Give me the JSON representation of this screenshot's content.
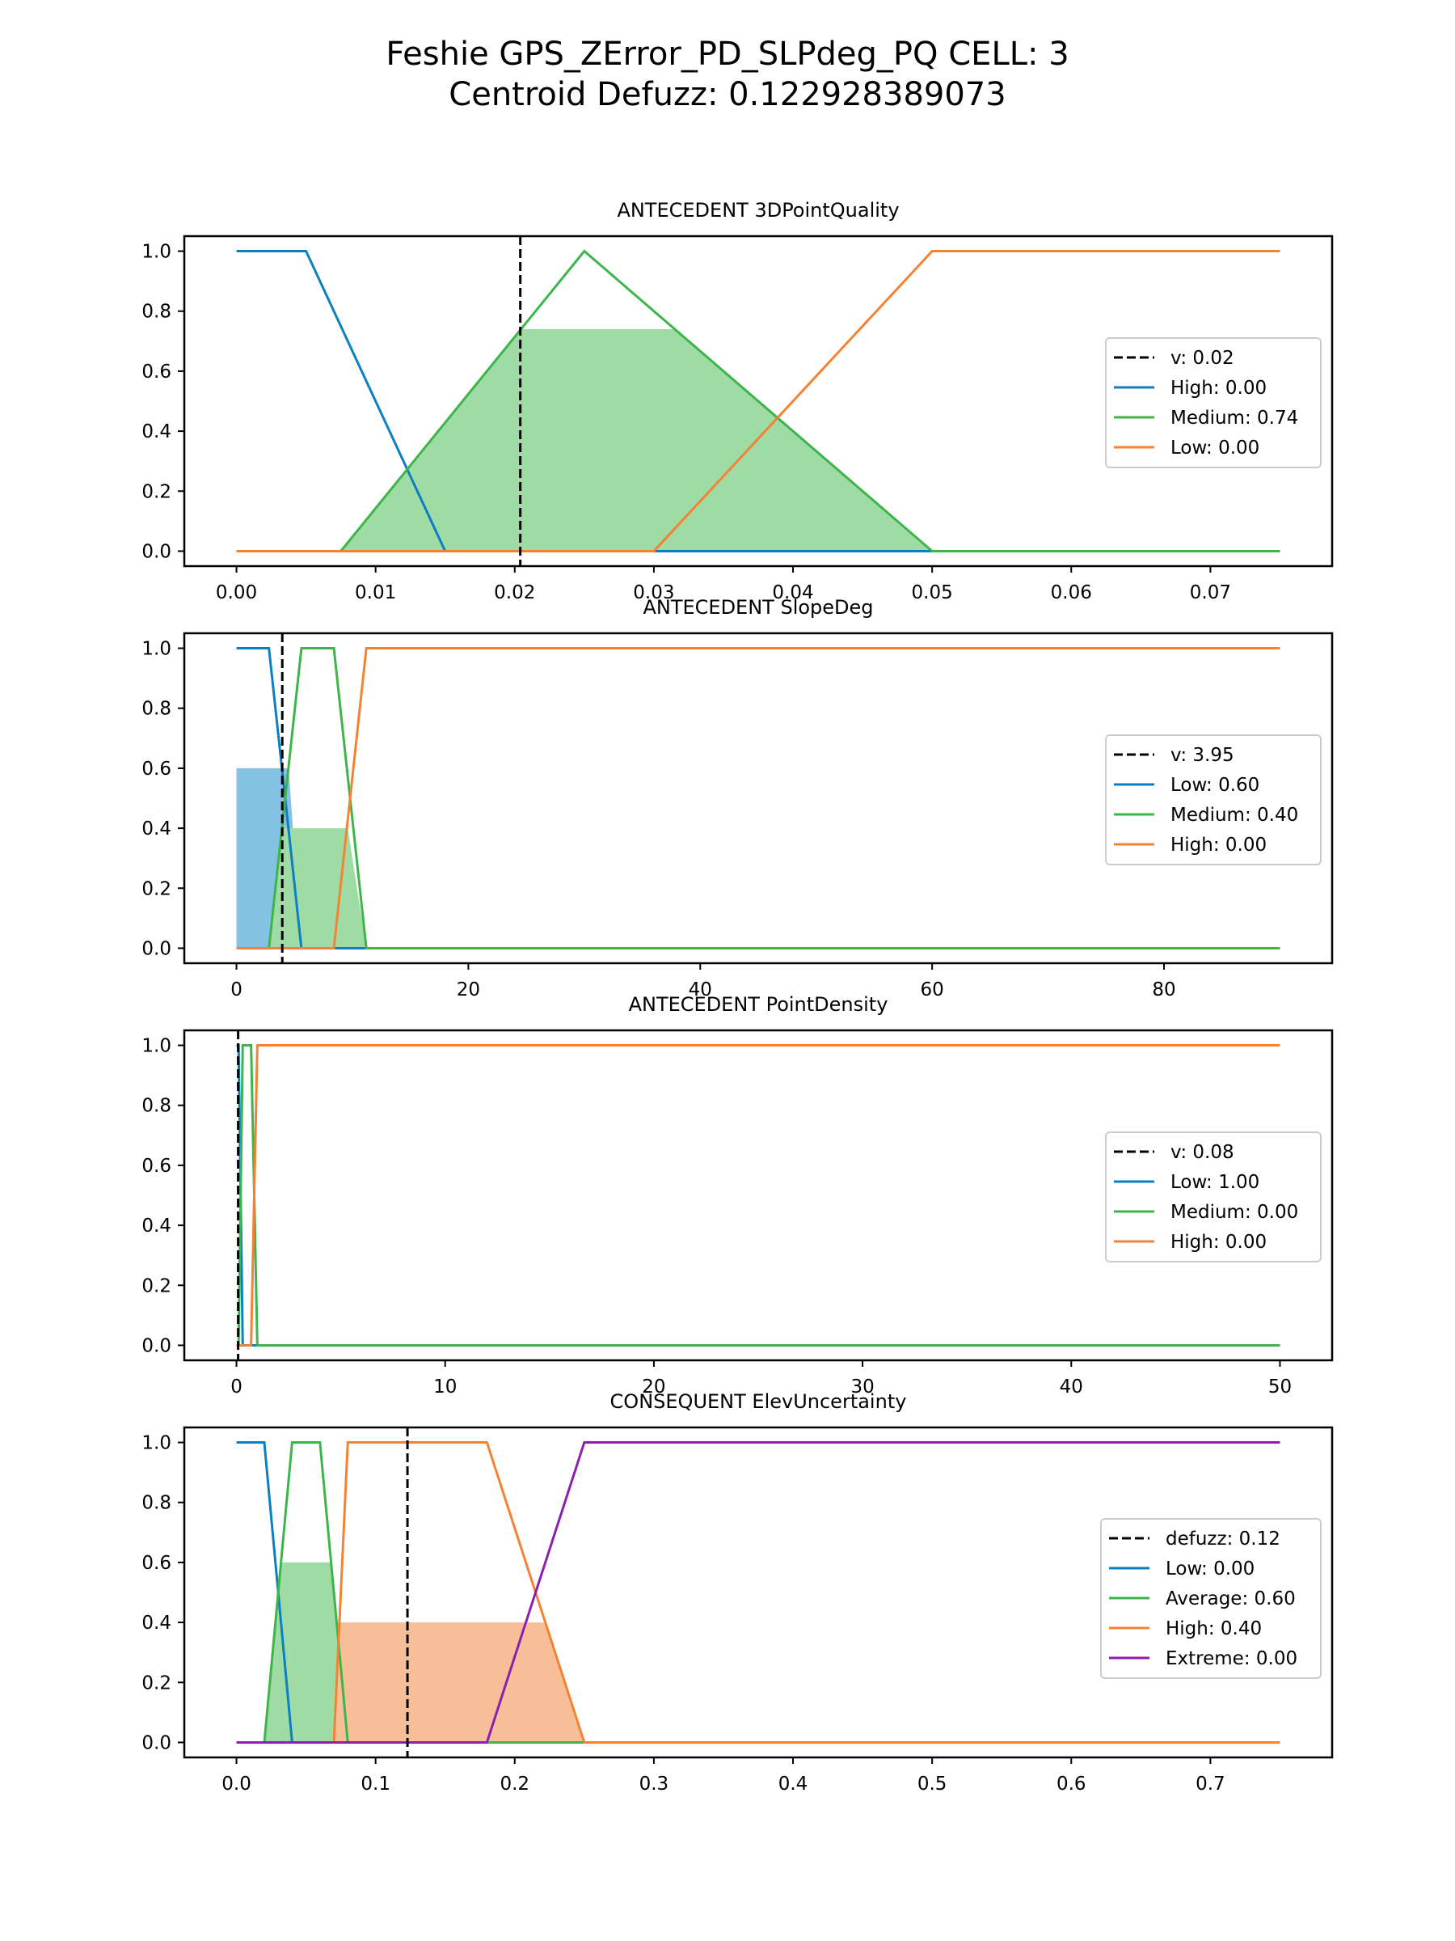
{
  "figure": {
    "title_line1": "Feshie GPS_ZError_PD_SLPdeg_PQ CELL: 3",
    "title_line2": "Centroid Defuzz: 0.122928389073"
  },
  "colors": {
    "blue": "#0a7fc2",
    "green": "#3cb54a",
    "orange": "#f58232",
    "purple": "#8c1fb0",
    "fill_blue": "#85c1e3",
    "fill_green": "#9fdba5",
    "fill_orange": "#f7bf97"
  },
  "chart_data": [
    {
      "type": "line",
      "title": "ANTECEDENT 3DPointQuality",
      "xlim": [
        -0.00375,
        0.07875
      ],
      "ylim": [
        -0.05,
        1.05
      ],
      "xticks": [
        0.0,
        0.01,
        0.02,
        0.03,
        0.04,
        0.05,
        0.06,
        0.07
      ],
      "xtick_labels": [
        "0.00",
        "0.01",
        "0.02",
        "0.03",
        "0.04",
        "0.05",
        "0.06",
        "0.07"
      ],
      "yticks": [
        0.0,
        0.2,
        0.4,
        0.6,
        0.8,
        1.0
      ],
      "ytick_labels": [
        "0.0",
        "0.2",
        "0.4",
        "0.6",
        "0.8",
        "1.0"
      ],
      "vline": {
        "x": 0.0204,
        "label": "v: 0.02"
      },
      "series": [
        {
          "name": "High: 0.00",
          "color": "#0a7fc2",
          "x": [
            0,
            0.005,
            0.015,
            0.075
          ],
          "y": [
            1,
            1,
            0,
            0
          ]
        },
        {
          "name": "Medium: 0.74",
          "color": "#3cb54a",
          "x": [
            0,
            0.0075,
            0.025,
            0.05,
            0.075
          ],
          "y": [
            0,
            0,
            1,
            0,
            0
          ]
        },
        {
          "name": "Low: 0.00",
          "color": "#f58232",
          "x": [
            0,
            0.03,
            0.05,
            0.075
          ],
          "y": [
            0,
            0,
            1,
            1
          ]
        }
      ],
      "fills": [
        {
          "color": "#9fdba5",
          "x": [
            0.0075,
            0.0205,
            0.0315,
            0.05
          ],
          "y": [
            0,
            0.74,
            0.74,
            0
          ]
        }
      ],
      "legend": "center-right"
    },
    {
      "type": "line",
      "title": "ANTECEDENT SlopeDeg",
      "xlim": [
        -4.5,
        94.5
      ],
      "ylim": [
        -0.05,
        1.05
      ],
      "xticks": [
        0,
        20,
        40,
        60,
        80
      ],
      "xtick_labels": [
        "0",
        "20",
        "40",
        "60",
        "80"
      ],
      "yticks": [
        0.0,
        0.2,
        0.4,
        0.6,
        0.8,
        1.0
      ],
      "ytick_labels": [
        "0.0",
        "0.2",
        "0.4",
        "0.6",
        "0.8",
        "1.0"
      ],
      "vline": {
        "x": 3.95,
        "label": "v: 3.95"
      },
      "series": [
        {
          "name": "Low: 0.60",
          "color": "#0a7fc2",
          "x": [
            0,
            2.8,
            5.6,
            90
          ],
          "y": [
            1,
            1,
            0,
            0
          ]
        },
        {
          "name": "Medium: 0.40",
          "color": "#3cb54a",
          "x": [
            0,
            2.8,
            5.6,
            8.4,
            11.2,
            90
          ],
          "y": [
            0,
            0,
            1,
            1,
            0,
            0
          ]
        },
        {
          "name": "High: 0.00",
          "color": "#f58232",
          "x": [
            0,
            8.4,
            11.2,
            90
          ],
          "y": [
            0,
            0,
            1,
            1
          ]
        }
      ],
      "fills": [
        {
          "color": "#85c1e3",
          "x": [
            0,
            0,
            4.5,
            5.6
          ],
          "y": [
            0,
            0.6,
            0.6,
            0
          ]
        },
        {
          "color": "#9fdba5",
          "x": [
            2.8,
            3.9,
            9.6,
            11.2
          ],
          "y": [
            0,
            0.4,
            0.4,
            0
          ]
        }
      ],
      "legend": "center-right"
    },
    {
      "type": "line",
      "title": "ANTECEDENT PointDensity",
      "xlim": [
        -2.5,
        52.5
      ],
      "ylim": [
        -0.05,
        1.05
      ],
      "xticks": [
        0,
        10,
        20,
        30,
        40,
        50
      ],
      "xtick_labels": [
        "0",
        "10",
        "20",
        "30",
        "40",
        "50"
      ],
      "yticks": [
        0.0,
        0.2,
        0.4,
        0.6,
        0.8,
        1.0
      ],
      "ytick_labels": [
        "0.0",
        "0.2",
        "0.4",
        "0.6",
        "0.8",
        "1.0"
      ],
      "vline": {
        "x": 0.08,
        "label": "v: 0.08"
      },
      "series": [
        {
          "name": "Low: 1.00",
          "color": "#0a7fc2",
          "x": [
            0,
            0.1,
            0.3,
            50
          ],
          "y": [
            1,
            1,
            0,
            0
          ]
        },
        {
          "name": "Medium: 0.00",
          "color": "#3cb54a",
          "x": [
            0,
            0.1,
            0.3,
            0.7,
            1.0,
            50
          ],
          "y": [
            0,
            0,
            1,
            1,
            0,
            0
          ]
        },
        {
          "name": "High: 0.00",
          "color": "#f58232",
          "x": [
            0,
            0.7,
            1.0,
            50
          ],
          "y": [
            0,
            0,
            1,
            1
          ]
        }
      ],
      "fills": [],
      "legend": "center-right"
    },
    {
      "type": "line",
      "title": "CONSEQUENT ElevUncertainty",
      "xlim": [
        -0.0375,
        0.7875
      ],
      "ylim": [
        -0.05,
        1.05
      ],
      "xticks": [
        0.0,
        0.1,
        0.2,
        0.3,
        0.4,
        0.5,
        0.6,
        0.7
      ],
      "xtick_labels": [
        "0.0",
        "0.1",
        "0.2",
        "0.3",
        "0.4",
        "0.5",
        "0.6",
        "0.7"
      ],
      "yticks": [
        0.0,
        0.2,
        0.4,
        0.6,
        0.8,
        1.0
      ],
      "ytick_labels": [
        "0.0",
        "0.2",
        "0.4",
        "0.6",
        "0.8",
        "1.0"
      ],
      "vline": {
        "x": 0.1229,
        "label": "defuzz: 0.12"
      },
      "series": [
        {
          "name": "Low: 0.00",
          "color": "#0a7fc2",
          "x": [
            0,
            0.02,
            0.04,
            0.75
          ],
          "y": [
            1,
            1,
            0,
            0
          ]
        },
        {
          "name": "Average: 0.60",
          "color": "#3cb54a",
          "x": [
            0,
            0.02,
            0.04,
            0.06,
            0.08,
            0.75
          ],
          "y": [
            0,
            0,
            1,
            1,
            0,
            0
          ]
        },
        {
          "name": "High: 0.40",
          "color": "#f58232",
          "x": [
            0,
            0.07,
            0.08,
            0.18,
            0.25,
            0.75
          ],
          "y": [
            0,
            0,
            1,
            1,
            0,
            0
          ]
        },
        {
          "name": "Extreme: 0.00",
          "color": "#8c1fb0",
          "x": [
            0,
            0.18,
            0.25,
            0.75
          ],
          "y": [
            0,
            0,
            1,
            1
          ]
        }
      ],
      "fills": [
        {
          "color": "#9fdba5",
          "x": [
            0.02,
            0.032,
            0.068,
            0.08
          ],
          "y": [
            0,
            0.6,
            0.6,
            0
          ]
        },
        {
          "color": "#f7bf97",
          "x": [
            0.07,
            0.074,
            0.222,
            0.25
          ],
          "y": [
            0,
            0.4,
            0.4,
            0
          ]
        }
      ],
      "legend": "center-right"
    }
  ]
}
